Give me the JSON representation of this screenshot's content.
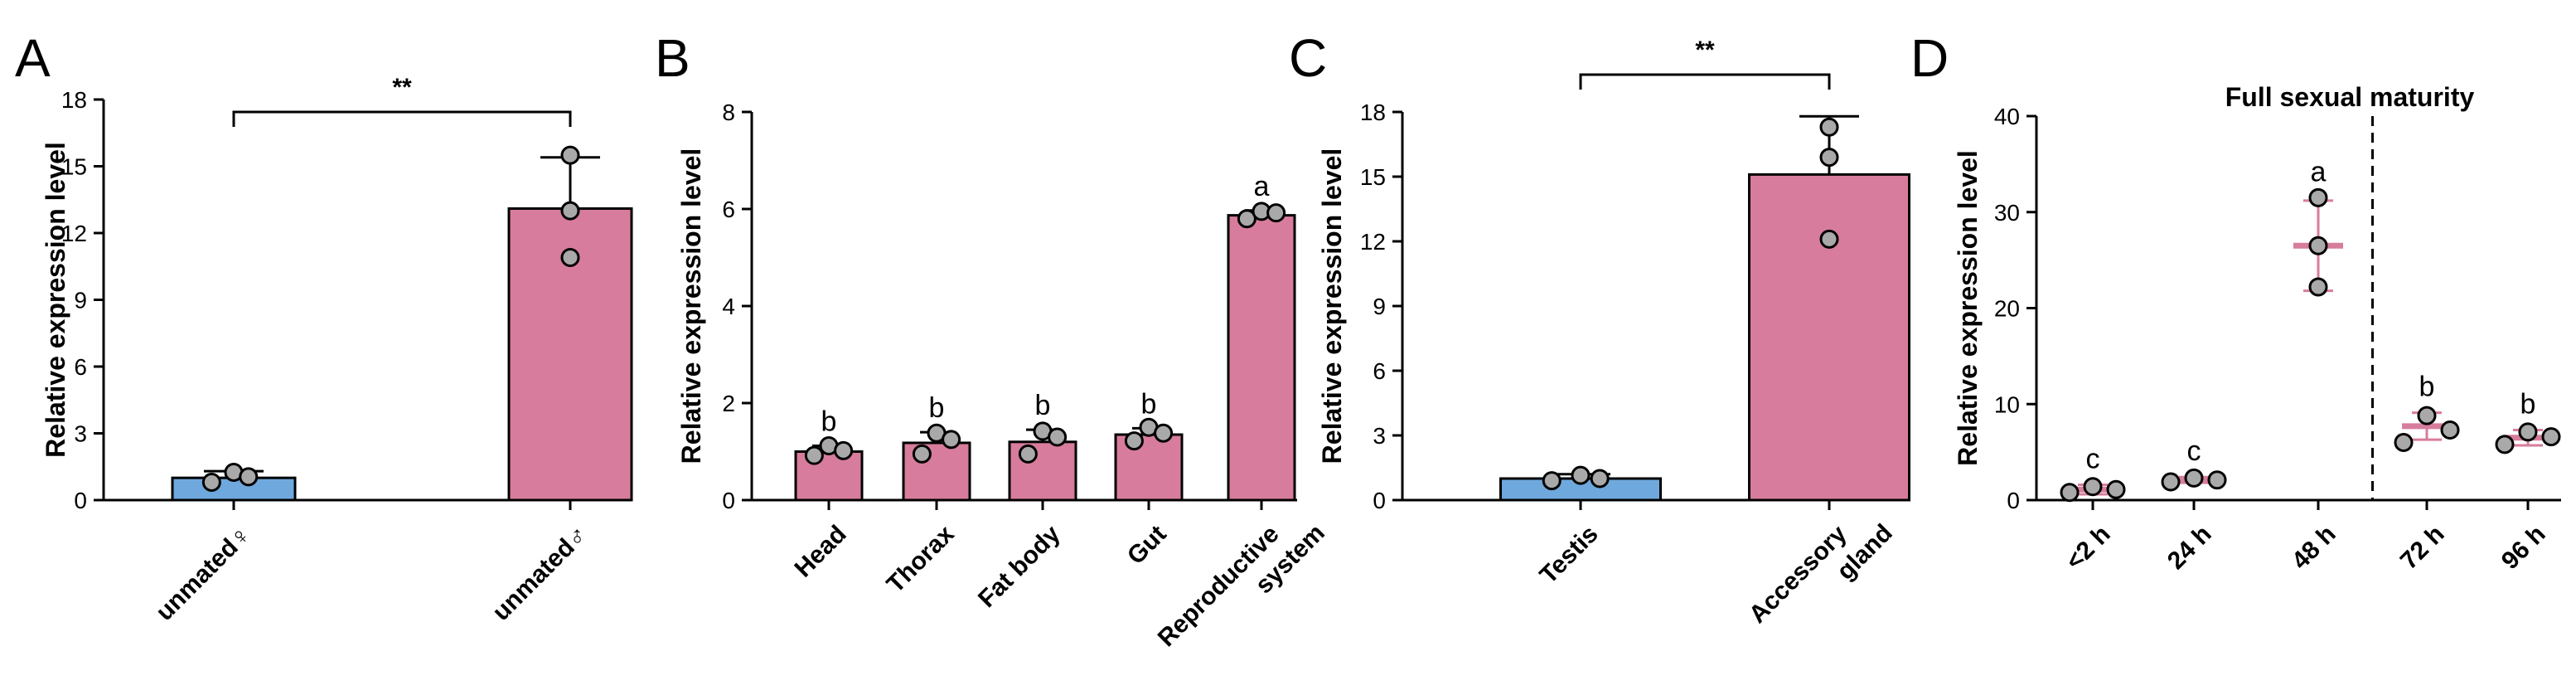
{
  "colors": {
    "female": "#6fa8dc",
    "male": "#d77c9d",
    "male_dark": "#c76a8d",
    "point": "#a9a9a9",
    "axis": "#000000"
  },
  "chart_data": [
    {
      "panel": "A",
      "type": "bar",
      "ylabel": "Relative expression level",
      "ylim": [
        0,
        18
      ],
      "yticks": [
        0,
        3,
        6,
        9,
        12,
        15,
        18
      ],
      "categories": [
        "unmated♀",
        "unmated♂"
      ],
      "values": [
        1.0,
        13.1
      ],
      "errors": [
        0.3,
        2.3
      ],
      "points": [
        [
          0.8,
          1.25,
          1.05
        ],
        [
          10.9,
          15.5,
          13.0
        ]
      ],
      "bar_colors": [
        "female",
        "male"
      ],
      "significance": {
        "label": "**",
        "between": [
          0,
          1
        ]
      },
      "group_letters": []
    },
    {
      "panel": "B",
      "type": "bar",
      "ylabel": "Relative expression level",
      "ylim": [
        0,
        8
      ],
      "yticks": [
        0,
        2,
        4,
        6,
        8
      ],
      "categories": [
        "Head",
        "Thorax",
        "Fat body",
        "Gut",
        "Reproductive system"
      ],
      "category_lines": [
        [
          "Head"
        ],
        [
          "Thorax"
        ],
        [
          "Fat body"
        ],
        [
          "Gut"
        ],
        [
          "Reproductive",
          "system"
        ]
      ],
      "values": [
        1.0,
        1.18,
        1.2,
        1.35,
        5.87
      ],
      "errors": [
        0.12,
        0.22,
        0.25,
        0.13,
        0.1
      ],
      "points": [
        [
          0.92,
          1.12,
          1.02
        ],
        [
          0.95,
          1.38,
          1.25
        ],
        [
          0.95,
          1.42,
          1.3
        ],
        [
          1.22,
          1.5,
          1.38
        ],
        [
          5.8,
          5.95,
          5.92
        ]
      ],
      "bar_colors": [
        "male",
        "male",
        "male",
        "male",
        "male"
      ],
      "group_letters": [
        "b",
        "b",
        "b",
        "b",
        "a"
      ]
    },
    {
      "panel": "C",
      "type": "bar",
      "ylabel": "Relative expression level",
      "ylim": [
        0,
        18
      ],
      "yticks": [
        0,
        3,
        6,
        9,
        12,
        15,
        18
      ],
      "categories": [
        "Testis",
        "Accessory gland"
      ],
      "category_lines": [
        [
          "Testis"
        ],
        [
          "Accessory",
          "gland"
        ]
      ],
      "values": [
        1.0,
        15.1
      ],
      "errors": [
        0.2,
        2.7
      ],
      "points": [
        [
          0.9,
          1.15,
          1.0
        ],
        [
          12.1,
          17.3,
          15.9
        ]
      ],
      "bar_colors": [
        "female",
        "male"
      ],
      "significance": {
        "label": "**",
        "between": [
          0,
          1
        ]
      },
      "group_letters": []
    },
    {
      "panel": "D",
      "type": "scatter",
      "ylabel": "Relative expression level",
      "ylim": [
        0,
        40
      ],
      "yticks": [
        0,
        10,
        20,
        30,
        40
      ],
      "categories": [
        "<2 h",
        "24 h",
        "48 h",
        "72 h",
        "96 h"
      ],
      "means": [
        1.1,
        2.1,
        26.5,
        7.7,
        6.5
      ],
      "errors": [
        0.5,
        0.3,
        4.7,
        1.4,
        0.8
      ],
      "points": [
        [
          0.8,
          1.4,
          1.1
        ],
        [
          1.9,
          2.3,
          2.1
        ],
        [
          22.2,
          31.5,
          26.5
        ],
        [
          6.0,
          8.8,
          7.3
        ],
        [
          5.8,
          7.1,
          6.6
        ]
      ],
      "group_letters": [
        "c",
        "c",
        "a",
        "b",
        "b"
      ],
      "annotation": "Full sexual maturity",
      "divider_after_index": 2
    }
  ]
}
